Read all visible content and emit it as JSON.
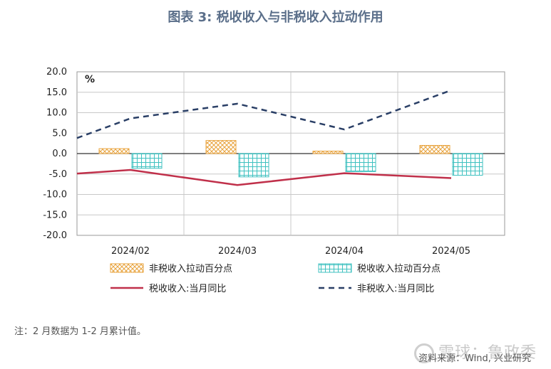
{
  "title": "图表 3:  税收收入与非税收入拉动作用",
  "note": "注：2 月数据为 1-2 月累计值。",
  "source": "资料来源：Wind, 兴业研究",
  "watermark": "雪球：鲁政委",
  "chart_data": {
    "type": "bar+line",
    "unit_label": "%",
    "categories": [
      "2024/02",
      "2024/03",
      "2024/04",
      "2024/05"
    ],
    "ylim": [
      -20,
      20
    ],
    "yticks": [
      "20.0",
      "15.0",
      "10.0",
      "5.0",
      "0.0",
      "-5.0",
      "-10.0",
      "-15.0",
      "-20.0"
    ],
    "grid": true,
    "bars": [
      {
        "name": "非税收入拉动百分点",
        "values": [
          1.2,
          3.2,
          0.6,
          2.0
        ],
        "color": "#e8a33d",
        "pattern": "crosshatch"
      },
      {
        "name": "税收收入拉动百分点",
        "values": [
          -3.6,
          -5.7,
          -4.4,
          -5.3
        ],
        "color": "#3fc1c0",
        "pattern": "grid"
      }
    ],
    "lines": [
      {
        "name": "税收收入:当月同比",
        "values": [
          -4.0,
          -7.7,
          -4.8,
          -6.0
        ],
        "color": "#c0304a",
        "style": "solid",
        "start": -4.9
      },
      {
        "name": "非税收入:当月同比",
        "values": [
          8.6,
          12.2,
          5.9,
          15.5
        ],
        "color": "#2a3f66",
        "style": "dashed",
        "start": 3.8
      }
    ]
  }
}
